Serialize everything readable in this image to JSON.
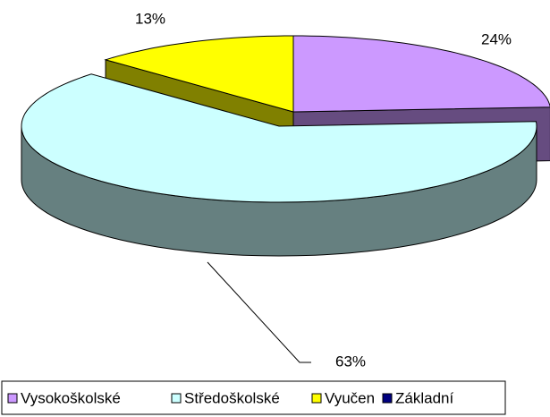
{
  "chart_data": {
    "type": "pie3d",
    "categories": [
      "Vysokoškolské",
      "Středoškolské",
      "Vyučen",
      "Základní"
    ],
    "values": [
      24,
      63,
      13,
      0
    ],
    "value_labels": [
      "24%",
      "63%",
      "13%",
      null
    ],
    "colors": [
      "#CC99FF",
      "#CCFFFF",
      "#FFFF00",
      "#000080"
    ],
    "side_colors": [
      "#664C80",
      "#668080",
      "#808000",
      "#000040"
    ],
    "legend": "bottom"
  }
}
